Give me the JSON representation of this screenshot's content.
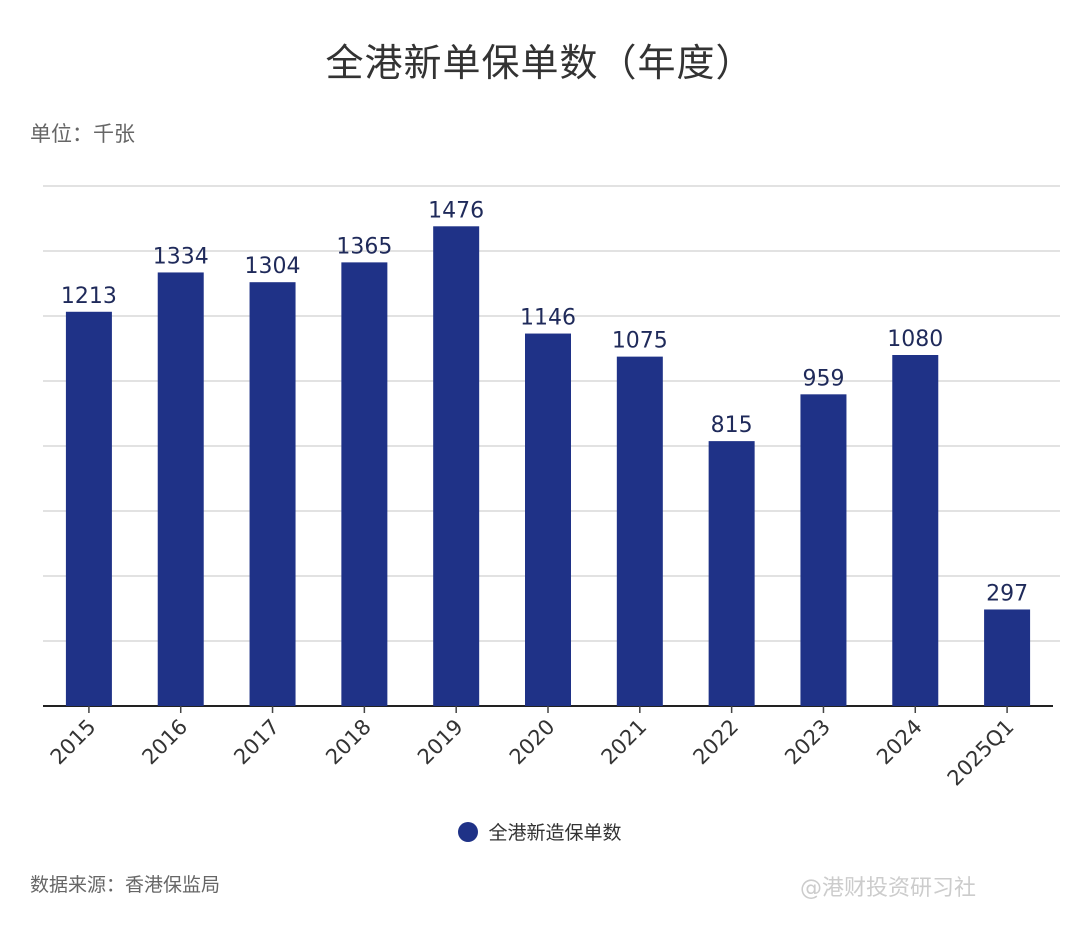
{
  "title": "全港新单保单数（年度）",
  "unit": "单位：千张",
  "source": "数据来源：香港保监局",
  "watermark": "@港财投资研习社",
  "chart_data": {
    "type": "bar",
    "title": "全港新单保单数（年度）",
    "categories": [
      "2015",
      "2016",
      "2017",
      "2018",
      "2019",
      "2020",
      "2021",
      "2022",
      "2023",
      "2024",
      "2025Q1"
    ],
    "series": [
      {
        "name": "全港新造保单数",
        "values": [
          1213,
          1334,
          1304,
          1365,
          1476,
          1146,
          1075,
          815,
          959,
          1080,
          297
        ],
        "color": "#1f3287"
      }
    ],
    "ylim": [
      0,
      1600
    ],
    "ytick_step": 200,
    "ytick_labels_shown": false,
    "grid": true,
    "legend": "bottom",
    "data_labels": true
  }
}
